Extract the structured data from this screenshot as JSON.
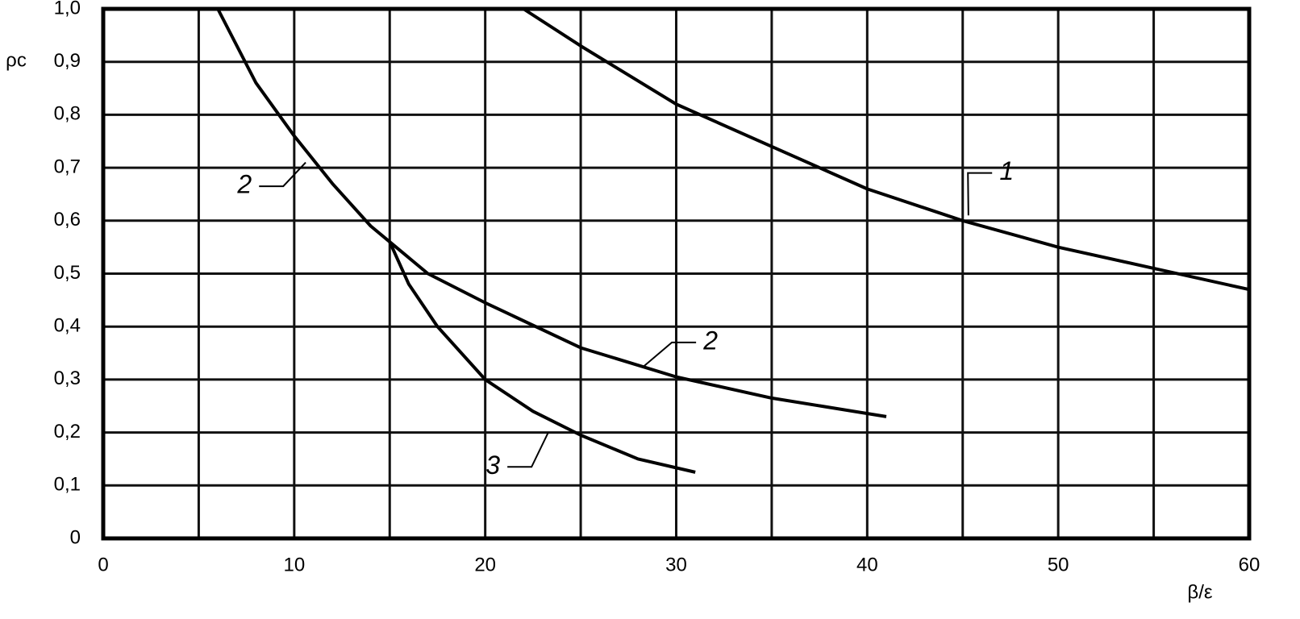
{
  "chart_data": {
    "type": "line",
    "xlabel": "β/ε",
    "ylabel": "ρc",
    "xlim": [
      0,
      60
    ],
    "ylim": [
      0,
      1
    ],
    "xticks": [
      0,
      10,
      20,
      30,
      40,
      50,
      60
    ],
    "x_minor_grid": [
      5,
      15,
      25,
      35,
      45,
      55
    ],
    "yticks": [
      0,
      {
        "value": 0.1,
        "label": "0,1"
      },
      {
        "value": 0.2,
        "label": "0,2"
      },
      {
        "value": 0.3,
        "label": "0,3"
      },
      {
        "value": 0.4,
        "label": "0,4"
      },
      {
        "value": 0.5,
        "label": "0,5"
      },
      {
        "value": 0.6,
        "label": "0,6"
      },
      {
        "value": 0.7,
        "label": "0,7"
      },
      {
        "value": 0.8,
        "label": "0,8"
      },
      {
        "value": 0.9,
        "label": "0,9"
      },
      {
        "value": 1,
        "label": "1,0"
      }
    ],
    "grid": true,
    "series": [
      {
        "color": "#000000",
        "x": [
          22,
          25,
          30,
          35,
          40,
          45,
          50,
          55,
          60
        ],
        "values": [
          1.0,
          0.93,
          0.82,
          0.74,
          0.66,
          0.6,
          0.55,
          0.51,
          0.47
        ]
      },
      {
        "color": "#000000",
        "x": [
          6,
          8,
          10,
          12,
          14,
          15,
          17,
          20,
          25,
          30,
          35,
          41
        ],
        "values": [
          1.0,
          0.86,
          0.76,
          0.67,
          0.59,
          0.56,
          0.5,
          0.445,
          0.36,
          0.305,
          0.265,
          0.23
        ]
      },
      {
        "color": "#000000",
        "x": [
          15,
          16,
          17.5,
          20,
          22.5,
          25,
          28,
          31
        ],
        "values": [
          0.56,
          0.48,
          0.4,
          0.3,
          0.24,
          0.195,
          0.15,
          0.125
        ]
      }
    ],
    "annotations": [
      {
        "text": "1",
        "x": 47.3,
        "y": 0.69,
        "x_end": 45.3,
        "y_end": 0.61
      },
      {
        "text": "2",
        "x": 7.4,
        "y": 0.665,
        "x_end": 10.6,
        "y_end": 0.71
      },
      {
        "text": "2",
        "x": 31.8,
        "y": 0.37,
        "x_end": 28.3,
        "y_end": 0.325
      },
      {
        "text": "3",
        "x": 20.4,
        "y": 0.135,
        "x_end": 23.3,
        "y_end": 0.2
      }
    ]
  }
}
